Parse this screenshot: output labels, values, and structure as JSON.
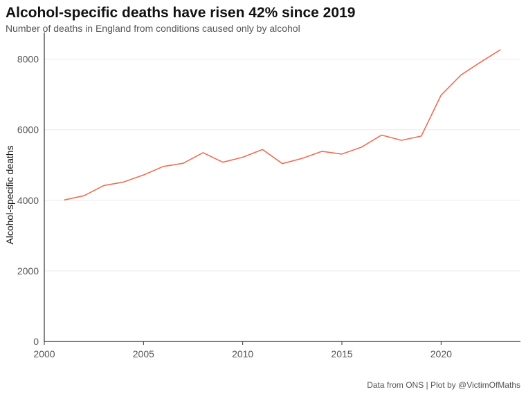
{
  "chart_data": {
    "type": "line",
    "title": "Alcohol-specific deaths have risen 42% since 2019",
    "subtitle": "Number of deaths in England from conditions caused only by alcohol",
    "xlabel": "",
    "ylabel": "Alcohol-specific deaths",
    "caption": "Data from ONS | Plot by @VictimOfMaths",
    "xlim": [
      2000,
      2024
    ],
    "ylim": [
      0,
      8600
    ],
    "x_ticks": [
      2000,
      2005,
      2010,
      2015,
      2020
    ],
    "y_ticks": [
      0,
      2000,
      4000,
      6000,
      8000
    ],
    "grid": true,
    "series": [
      {
        "color": "#f26c4f",
        "x": [
          2001,
          2002,
          2003,
          2004,
          2005,
          2006,
          2007,
          2008,
          2009,
          2010,
          2011,
          2012,
          2013,
          2014,
          2015,
          2016,
          2017,
          2018,
          2019,
          2020,
          2021,
          2022,
          2023
        ],
        "values": [
          4010,
          4130,
          4420,
          4520,
          4720,
          4960,
          5050,
          5350,
          5080,
          5220,
          5440,
          5040,
          5190,
          5390,
          5310,
          5510,
          5850,
          5700,
          5820,
          6980,
          7550,
          7920,
          8270
        ]
      }
    ]
  }
}
